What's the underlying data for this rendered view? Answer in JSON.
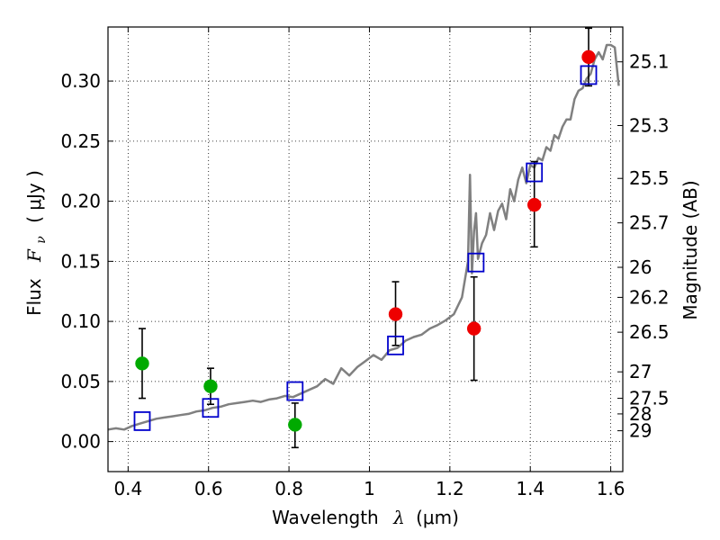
{
  "chart_data": {
    "type": "scatter",
    "xlabel": {
      "prefix": "Wavelength",
      "symbol": "λ",
      "unit": "(μm)"
    },
    "ylabel": {
      "prefix": "Flux",
      "symbol": "F",
      "subscript": "ν",
      "unit": "( μJy )"
    },
    "y2label": "Magnitude (AB)",
    "xlim": [
      0.35,
      1.63
    ],
    "ylim": [
      -0.025,
      0.345
    ],
    "grid": true,
    "x_ticks": [
      {
        "value": 0.4,
        "label": "0.4"
      },
      {
        "value": 0.6,
        "label": "0.6"
      },
      {
        "value": 0.8,
        "label": "0.8"
      },
      {
        "value": 1.0,
        "label": "1"
      },
      {
        "value": 1.2,
        "label": "1.2"
      },
      {
        "value": 1.4,
        "label": "1.4"
      },
      {
        "value": 1.6,
        "label": "1.6"
      }
    ],
    "y_ticks": [
      {
        "value": 0.0,
        "label": "0.00"
      },
      {
        "value": 0.05,
        "label": "0.05"
      },
      {
        "value": 0.1,
        "label": "0.10"
      },
      {
        "value": 0.15,
        "label": "0.15"
      },
      {
        "value": 0.2,
        "label": "0.20"
      },
      {
        "value": 0.25,
        "label": "0.25"
      },
      {
        "value": 0.3,
        "label": "0.30"
      }
    ],
    "y2_ticks": [
      {
        "flux": 0.316,
        "label": "25.1"
      },
      {
        "flux": 0.263,
        "label": "25.3"
      },
      {
        "flux": 0.219,
        "label": "25.5"
      },
      {
        "flux": 0.182,
        "label": "25.7"
      },
      {
        "flux": 0.145,
        "label": "26"
      },
      {
        "flux": 0.12,
        "label": "26.2"
      },
      {
        "flux": 0.091,
        "label": "26.5"
      },
      {
        "flux": 0.058,
        "label": "27"
      },
      {
        "flux": 0.036,
        "label": "27.5"
      },
      {
        "flux": 0.023,
        "label": "28"
      },
      {
        "flux": 0.009,
        "label": "29"
      }
    ],
    "colors": {
      "model": "#808080",
      "model_points": "#0000cc",
      "detections": "#ee0000",
      "optical_points": "#00aa00",
      "errorbar": "#000000"
    },
    "series": [
      {
        "kind": "line",
        "x": [
          0.35,
          0.37,
          0.39,
          0.41,
          0.43,
          0.45,
          0.47,
          0.49,
          0.51,
          0.53,
          0.55,
          0.57,
          0.59,
          0.61,
          0.63,
          0.65,
          0.67,
          0.69,
          0.71,
          0.73,
          0.75,
          0.77,
          0.79,
          0.81,
          0.83,
          0.85,
          0.87,
          0.89,
          0.91,
          0.93,
          0.95,
          0.97,
          0.99,
          1.01,
          1.03,
          1.05,
          1.07,
          1.09,
          1.11,
          1.13,
          1.15,
          1.17,
          1.19,
          1.21,
          1.23,
          1.245,
          1.25,
          1.255,
          1.26,
          1.265,
          1.27,
          1.28,
          1.29,
          1.3,
          1.31,
          1.32,
          1.33,
          1.34,
          1.35,
          1.36,
          1.37,
          1.38,
          1.39,
          1.4,
          1.41,
          1.42,
          1.43,
          1.44,
          1.45,
          1.46,
          1.47,
          1.48,
          1.49,
          1.5,
          1.51,
          1.52,
          1.53,
          1.54,
          1.55,
          1.56,
          1.57,
          1.58,
          1.59,
          1.6,
          1.61,
          1.62
        ],
        "y": [
          0.01,
          0.011,
          0.01,
          0.013,
          0.015,
          0.017,
          0.019,
          0.02,
          0.021,
          0.022,
          0.023,
          0.025,
          0.026,
          0.028,
          0.029,
          0.031,
          0.032,
          0.033,
          0.034,
          0.033,
          0.035,
          0.036,
          0.038,
          0.037,
          0.04,
          0.043,
          0.046,
          0.052,
          0.048,
          0.061,
          0.055,
          0.062,
          0.067,
          0.072,
          0.068,
          0.076,
          0.078,
          0.084,
          0.087,
          0.089,
          0.094,
          0.097,
          0.101,
          0.106,
          0.12,
          0.15,
          0.222,
          0.14,
          0.175,
          0.19,
          0.152,
          0.165,
          0.172,
          0.19,
          0.176,
          0.192,
          0.198,
          0.185,
          0.21,
          0.2,
          0.218,
          0.228,
          0.215,
          0.23,
          0.228,
          0.236,
          0.234,
          0.245,
          0.242,
          0.255,
          0.252,
          0.262,
          0.268,
          0.268,
          0.285,
          0.292,
          0.294,
          0.302,
          0.306,
          0.318,
          0.324,
          0.318,
          0.33,
          0.33,
          0.328,
          0.296
        ]
      },
      {
        "kind": "squares",
        "x": [
          0.435,
          0.605,
          0.815,
          1.065,
          1.265,
          1.41,
          1.545
        ],
        "y": [
          0.017,
          0.028,
          0.042,
          0.08,
          0.149,
          0.224,
          0.305
        ]
      },
      {
        "kind": "points",
        "color_key": "optical_points",
        "x": [
          0.435,
          0.605,
          0.815
        ],
        "y": [
          0.065,
          0.046,
          0.014
        ],
        "err_low": [
          0.036,
          0.031,
          -0.005
        ],
        "err_high": [
          0.094,
          0.061,
          0.032
        ]
      },
      {
        "kind": "points",
        "color_key": "detections",
        "x": [
          1.065,
          1.26,
          1.41,
          1.545
        ],
        "y": [
          0.106,
          0.094,
          0.197,
          0.32
        ],
        "err_low": [
          0.08,
          0.051,
          0.162,
          0.296
        ],
        "err_high": [
          0.133,
          0.137,
          0.233,
          0.344
        ]
      }
    ]
  }
}
